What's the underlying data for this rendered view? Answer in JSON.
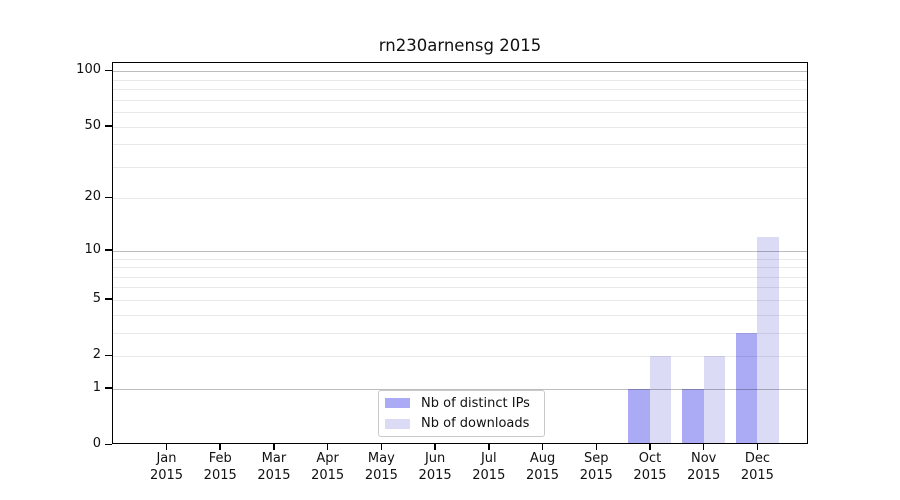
{
  "title": "rn230arnensg 2015",
  "colors": {
    "distinct_ips": "#aaaaf5",
    "downloads": "#dbdbf6",
    "grid_major": "#bfbfbf",
    "grid_minor": "#e8e8e8",
    "spine": "#000000",
    "legend_border": "#c9c9c9"
  },
  "legend": {
    "items": [
      {
        "color_key": "distinct_ips"
      },
      {
        "color_key": "downloads"
      }
    ]
  },
  "chart_data": {
    "type": "bar",
    "title": "rn230arnensg 2015",
    "categories": [
      "Jan",
      "Feb",
      "Mar",
      "Apr",
      "May",
      "Jun",
      "Jul",
      "Aug",
      "Sep",
      "Oct",
      "Nov",
      "Dec"
    ],
    "year": "2015",
    "series": [
      {
        "name": "Nb of distinct IPs",
        "values": [
          0,
          0,
          0,
          0,
          0,
          0,
          0,
          0,
          0,
          1,
          1,
          3
        ]
      },
      {
        "name": "Nb of downloads",
        "values": [
          0,
          0,
          0,
          0,
          0,
          0,
          0,
          0,
          0,
          2,
          2,
          12
        ]
      }
    ],
    "xlabel": "",
    "ylabel": "",
    "y_scale": "log10(1+y)",
    "ylim": [
      0,
      112
    ],
    "y_ticks": [
      100,
      50,
      20,
      10,
      5,
      2,
      1,
      0
    ],
    "y_major_gridlines": [
      1,
      10,
      100
    ],
    "y_minor_gridlines": [
      2,
      3,
      4,
      5,
      6,
      7,
      8,
      9,
      20,
      30,
      40,
      50,
      60,
      70,
      80,
      90
    ],
    "grid": true,
    "legend_position": "lower center inside"
  }
}
